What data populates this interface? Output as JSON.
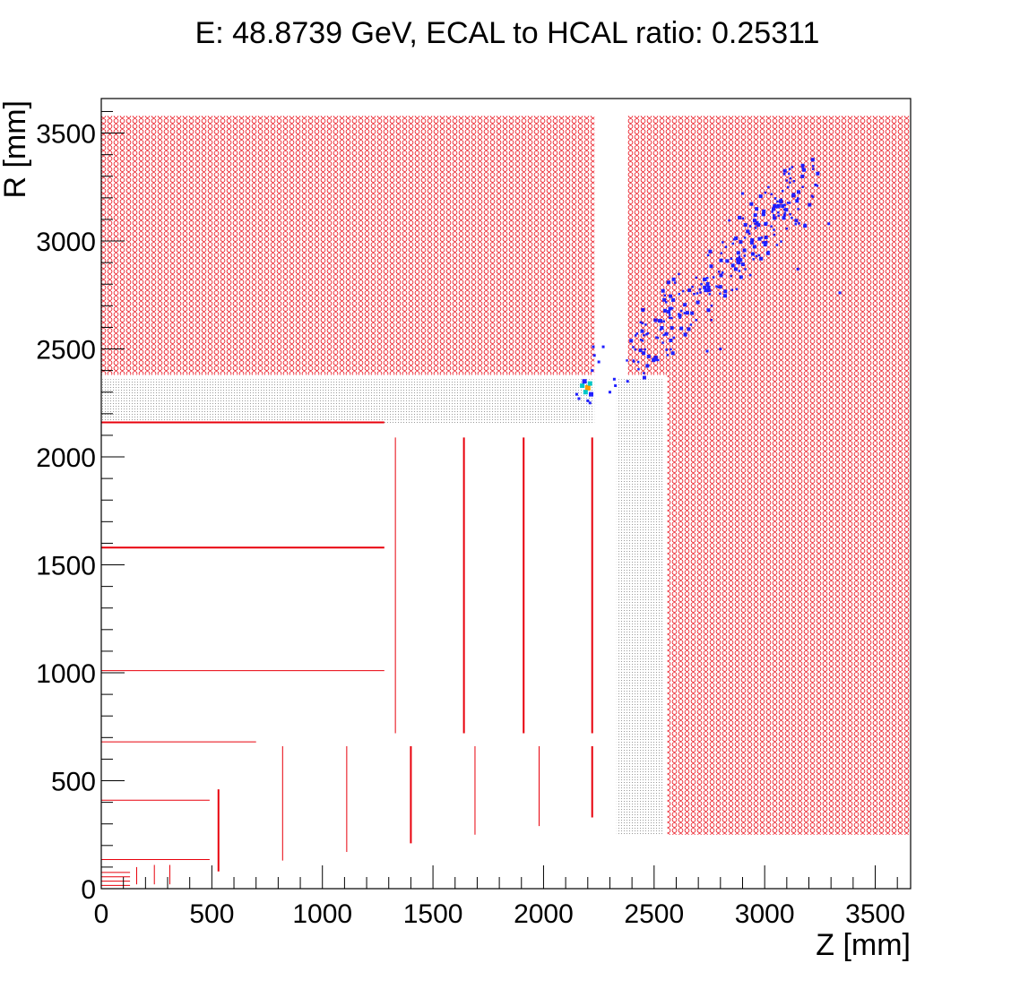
{
  "chart_data": {
    "type": "scatter",
    "title": "E: 48.8739 GeV, ECAL to HCAL ratio: 0.25311",
    "xlabel": "Z [mm]",
    "ylabel": "R [mm]",
    "xlim": [
      0,
      3660
    ],
    "ylim": [
      0,
      3660
    ],
    "x_ticks": [
      0,
      500,
      1000,
      1500,
      2000,
      2500,
      3000,
      3500
    ],
    "y_ticks": [
      0,
      500,
      1000,
      1500,
      2000,
      2500,
      3000,
      3500
    ],
    "x_tick_labels": [
      "0",
      "500",
      "1000",
      "1500",
      "2000",
      "2500",
      "3000",
      "3500"
    ],
    "y_tick_labels": [
      "0",
      "500",
      "1000",
      "1500",
      "2000",
      "2500",
      "3000",
      "3500"
    ],
    "grid": false,
    "legend": "none",
    "colors": {
      "detector": "#e8000b",
      "ecal_fill": "#b4b4b4",
      "hit_low": "#2020ff",
      "hit_mid": "#00c8c8",
      "hit_high": "#ff9a00"
    },
    "detector_regions": [
      {
        "name": "HCAL barrel",
        "fill": "hatch",
        "z": [
          0,
          2230
        ],
        "r": [
          2380,
          3580
        ]
      },
      {
        "name": "HCAL endcap upper",
        "fill": "hatch",
        "z": [
          2380,
          3660
        ],
        "r": [
          2380,
          3580
        ]
      },
      {
        "name": "HCAL endcap",
        "fill": "hatch",
        "z": [
          2560,
          3660
        ],
        "r": [
          250,
          2380
        ]
      },
      {
        "name": "ECAL barrel",
        "fill": "dots",
        "z": [
          0,
          2230
        ],
        "r": [
          2150,
          2360
        ]
      },
      {
        "name": "ECAL endcap",
        "fill": "dots",
        "z": [
          2330,
          2540
        ],
        "r": [
          250,
          2360
        ]
      }
    ],
    "tracker_lines": [
      {
        "z": [
          0,
          1280
        ],
        "r": [
          2160,
          2160
        ],
        "w": 2
      },
      {
        "z": [
          0,
          1280
        ],
        "r": [
          1580,
          1580
        ],
        "w": 2
      },
      {
        "z": [
          0,
          1280
        ],
        "r": [
          1010,
          1010
        ],
        "w": 1
      },
      {
        "z": [
          0,
          700
        ],
        "r": [
          680,
          680
        ],
        "w": 1
      },
      {
        "z": [
          0,
          490
        ],
        "r": [
          410,
          410
        ],
        "w": 1
      },
      {
        "z": [
          0,
          490
        ],
        "r": [
          135,
          135
        ],
        "w": 1
      },
      {
        "z": [
          1330,
          1330
        ],
        "r": [
          720,
          2090
        ],
        "w": 1
      },
      {
        "z": [
          1640,
          1640
        ],
        "r": [
          720,
          2090
        ],
        "w": 2
      },
      {
        "z": [
          1910,
          1910
        ],
        "r": [
          720,
          2090
        ],
        "w": 2
      },
      {
        "z": [
          2220,
          2220
        ],
        "r": [
          720,
          2090
        ],
        "w": 2
      },
      {
        "z": [
          530,
          530
        ],
        "r": [
          80,
          460
        ],
        "w": 2
      },
      {
        "z": [
          820,
          820
        ],
        "r": [
          130,
          660
        ],
        "w": 1
      },
      {
        "z": [
          1110,
          1110
        ],
        "r": [
          170,
          660
        ],
        "w": 1
      },
      {
        "z": [
          1400,
          1400
        ],
        "r": [
          210,
          660
        ],
        "w": 2
      },
      {
        "z": [
          1690,
          1690
        ],
        "r": [
          250,
          660
        ],
        "w": 1
      },
      {
        "z": [
          1980,
          1980
        ],
        "r": [
          290,
          660
        ],
        "w": 1
      },
      {
        "z": [
          2220,
          2220
        ],
        "r": [
          330,
          660
        ],
        "w": 2
      },
      {
        "z": [
          160,
          160
        ],
        "r": [
          20,
          100
        ],
        "w": 1
      },
      {
        "z": [
          240,
          240
        ],
        "r": [
          20,
          110
        ],
        "w": 1
      },
      {
        "z": [
          310,
          310
        ],
        "r": [
          20,
          110
        ],
        "w": 1
      },
      {
        "z": [
          0,
          130
        ],
        "r": [
          75,
          75
        ],
        "w": 1
      },
      {
        "z": [
          0,
          130
        ],
        "r": [
          55,
          55
        ],
        "w": 1
      },
      {
        "z": [
          0,
          130
        ],
        "r": [
          35,
          35
        ],
        "w": 1
      },
      {
        "z": [
          0,
          130
        ],
        "r": [
          15,
          15
        ],
        "w": 1
      }
    ],
    "hits_hot": [
      {
        "z": 2200,
        "r": 2320,
        "level": "high"
      },
      {
        "z": 2190,
        "r": 2300,
        "level": "mid"
      },
      {
        "z": 2210,
        "r": 2340,
        "level": "mid"
      },
      {
        "z": 2175,
        "r": 2330,
        "level": "mid"
      },
      {
        "z": 2215,
        "r": 2290,
        "level": "low"
      },
      {
        "z": 2185,
        "r": 2350,
        "level": "low"
      }
    ],
    "hits_cluster": {
      "seed": 48873,
      "count": 260,
      "z_range": [
        2380,
        3200
      ],
      "r_range": [
        2430,
        3260
      ]
    },
    "hits_scattered": [
      {
        "z": 2150,
        "r": 2290
      },
      {
        "z": 2160,
        "r": 2270
      },
      {
        "z": 2200,
        "r": 2260
      },
      {
        "z": 2210,
        "r": 2250
      },
      {
        "z": 2220,
        "r": 2400
      },
      {
        "z": 2230,
        "r": 2470
      },
      {
        "z": 2225,
        "r": 2510
      },
      {
        "z": 2270,
        "r": 2510
      },
      {
        "z": 2250,
        "r": 2440
      },
      {
        "z": 2300,
        "r": 2300
      },
      {
        "z": 2320,
        "r": 2360
      },
      {
        "z": 2325,
        "r": 2330
      },
      {
        "z": 2380,
        "r": 2350
      },
      {
        "z": 3230,
        "r": 3260
      },
      {
        "z": 3290,
        "r": 3080
      },
      {
        "z": 3340,
        "r": 2760
      },
      {
        "z": 3150,
        "r": 2870
      },
      {
        "z": 3090,
        "r": 3120
      },
      {
        "z": 2740,
        "r": 2490
      },
      {
        "z": 2800,
        "r": 2500
      },
      {
        "z": 2510,
        "r": 2450
      },
      {
        "z": 3050,
        "r": 3160
      },
      {
        "z": 2900,
        "r": 3220
      }
    ]
  }
}
